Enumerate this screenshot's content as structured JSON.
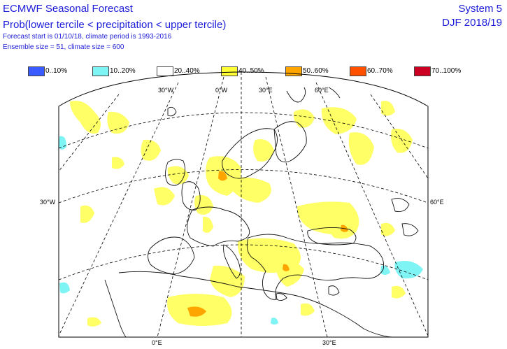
{
  "header": {
    "title": "ECMWF Seasonal Forecast",
    "subtitle": "Prob(lower tercile < precipitation < upper tercile)",
    "forecast_info": "Forecast start is 01/10/18, climate period is 1993-2016",
    "ensemble_info": "Ensemble size = 51, climate size = 600",
    "system": "System 5",
    "season": "DJF 2018/19"
  },
  "legend": [
    {
      "label": "0..10%",
      "color": "#3a5bff"
    },
    {
      "label": "10..20%",
      "color": "#7ff4f4"
    },
    {
      "label": "20..40%",
      "color": "#ffffff"
    },
    {
      "label": "40..50%",
      "color": "#ffff33"
    },
    {
      "label": "50..60%",
      "color": "#ffa500"
    },
    {
      "label": "60..70%",
      "color": "#ff5000"
    },
    {
      "label": "70..100%",
      "color": "#cc0022"
    }
  ],
  "graticule_labels": {
    "top": [
      "30°W",
      "0°W",
      "30°E",
      "60°E"
    ],
    "bottom": [
      "0°E",
      "30°E"
    ],
    "left": [
      "30°W"
    ],
    "right": [
      "60°E"
    ]
  }
}
